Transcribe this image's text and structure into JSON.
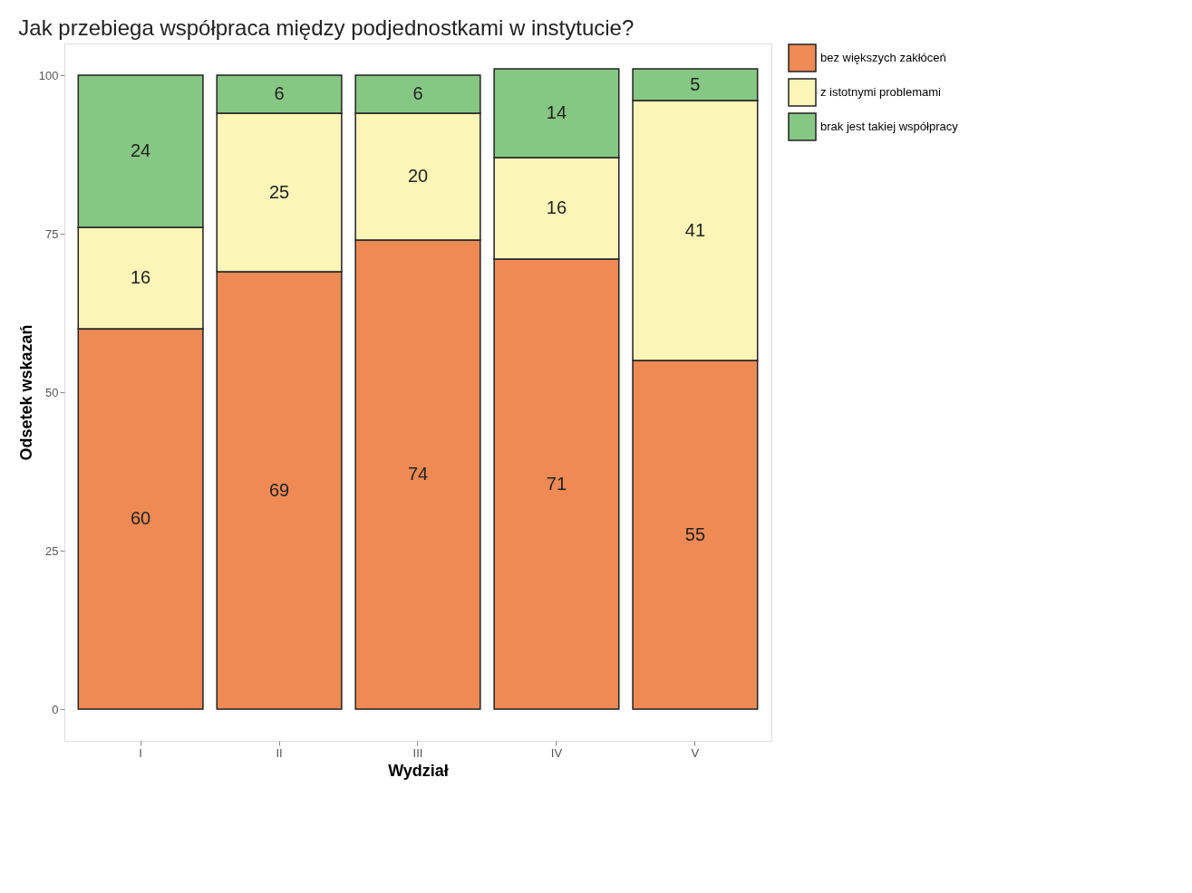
{
  "chart_data": {
    "type": "bar",
    "title": "Jak przebiega współpraca między podjednostkami w instytucie?",
    "xlabel": "Wydział",
    "ylabel": "Odsetek wskazań",
    "categories": [
      "I",
      "II",
      "III",
      "IV",
      "V"
    ],
    "series": [
      {
        "name": "bez większych zakłóceń",
        "color": "#ef8a55",
        "values": [
          60,
          69,
          74,
          71,
          55
        ]
      },
      {
        "name": "z istotnymi problemami",
        "color": "#fbf5b8",
        "values": [
          16,
          25,
          20,
          16,
          41
        ]
      },
      {
        "name": "brak jest takiej współpracy",
        "color": "#86c783",
        "values": [
          24,
          6,
          6,
          14,
          5
        ]
      }
    ],
    "stacked": true,
    "ylim": [
      -5,
      105
    ],
    "yticks": [
      0,
      25,
      50,
      75,
      100
    ],
    "grid": false,
    "legend": "right",
    "data_labels": true
  }
}
